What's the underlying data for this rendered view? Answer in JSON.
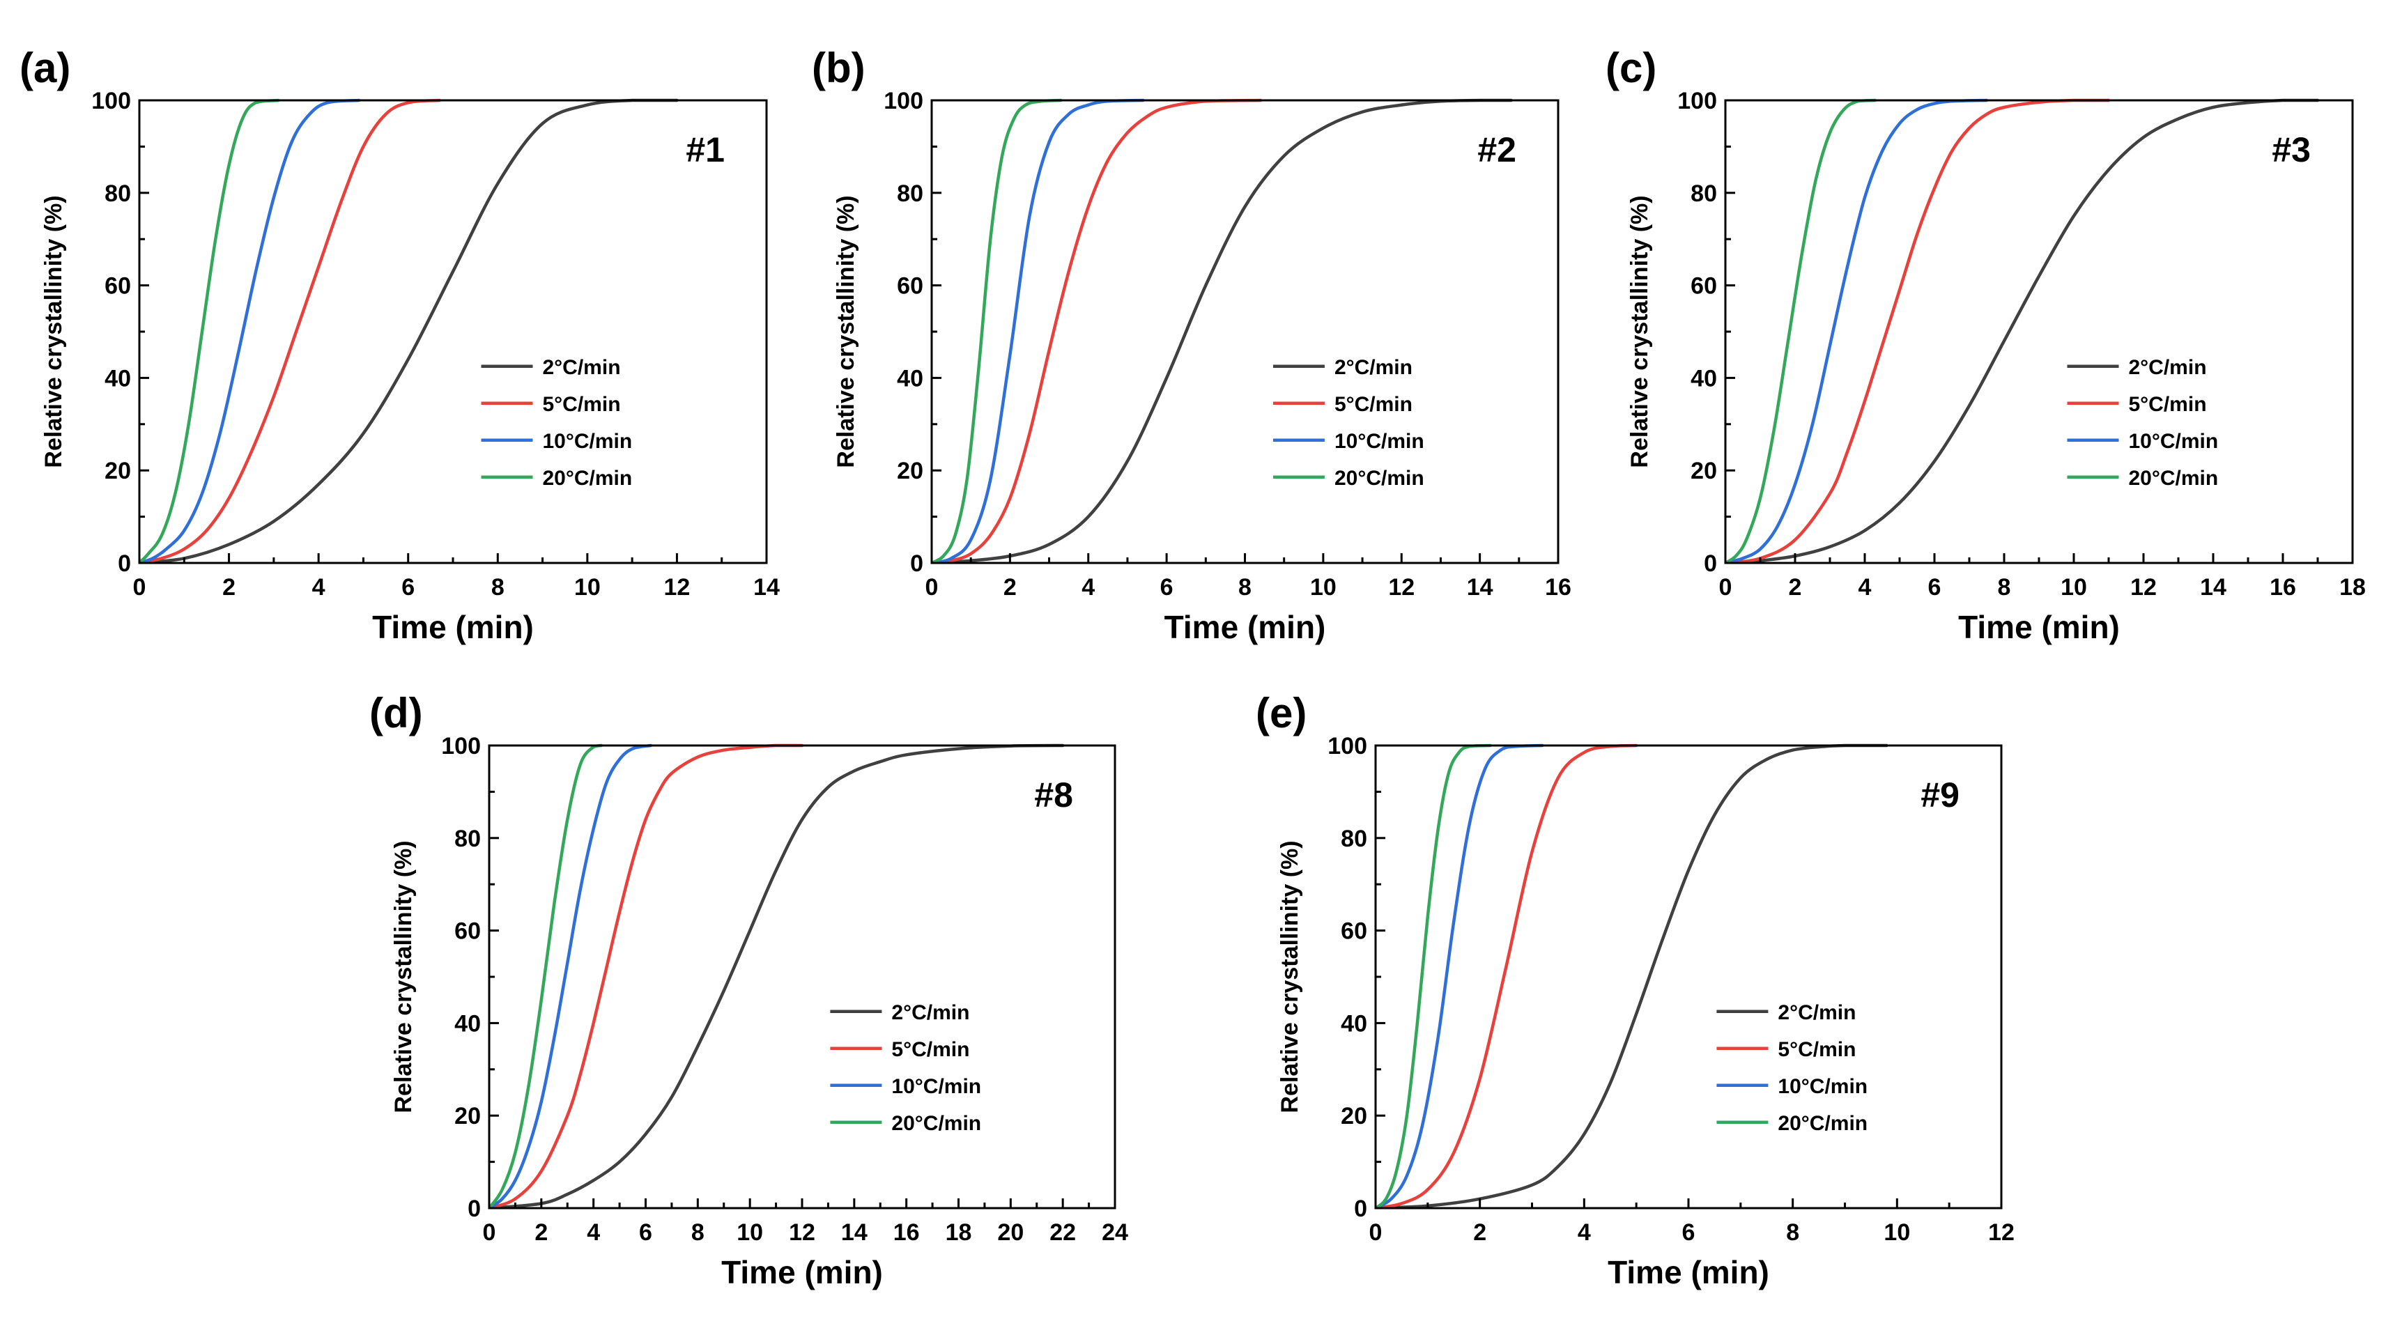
{
  "colors": {
    "2°C/min": "#404040",
    "5°C/min": "#e8413c",
    "10°C/min": "#2f6fd8",
    "20°C/min": "#33a85a"
  },
  "chart_data": [
    {
      "type": "line",
      "panel_label": "(a)",
      "sample_tag": "#1",
      "xlabel": "Time (min)",
      "ylabel": "Relative crystallinity (%)",
      "xlim": [
        0,
        14
      ],
      "ylim": [
        0,
        100
      ],
      "xticks": [
        0,
        2,
        4,
        6,
        8,
        10,
        12,
        14
      ],
      "yticks": [
        0,
        20,
        40,
        60,
        80,
        100
      ],
      "grid": false,
      "legend_position": "center-right",
      "series": [
        {
          "name": "2°C/min",
          "x": [
            0,
            1,
            2,
            3,
            4,
            5,
            6,
            7,
            8,
            9,
            10,
            11,
            12
          ],
          "y": [
            0,
            1,
            4,
            9,
            17,
            28,
            44,
            63,
            82,
            95,
            99,
            100,
            100
          ]
        },
        {
          "name": "5°C/min",
          "x": [
            0,
            0.5,
            1,
            1.5,
            2,
            2.5,
            3,
            3.5,
            4,
            4.5,
            5,
            5.5,
            6,
            6.7
          ],
          "y": [
            0,
            1,
            3,
            7,
            14,
            24,
            36,
            50,
            64,
            78,
            90,
            97,
            99.5,
            100
          ]
        },
        {
          "name": "10°C/min",
          "x": [
            0,
            0.3,
            0.6,
            1,
            1.4,
            1.8,
            2.2,
            2.6,
            3,
            3.4,
            3.8,
            4.2,
            4.9
          ],
          "y": [
            0,
            1,
            3,
            7,
            15,
            28,
            45,
            63,
            79,
            91,
            97,
            99.5,
            100
          ]
        },
        {
          "name": "20°C/min",
          "x": [
            0,
            0.2,
            0.5,
            0.8,
            1.1,
            1.4,
            1.7,
            2,
            2.3,
            2.6,
            3.1
          ],
          "y": [
            0,
            2,
            6,
            15,
            30,
            50,
            70,
            86,
            96,
            99.5,
            100
          ]
        }
      ]
    },
    {
      "type": "line",
      "panel_label": "(b)",
      "sample_tag": "#2",
      "xlabel": "Time (min)",
      "ylabel": "Relative crystallinity (%)",
      "xlim": [
        0,
        16
      ],
      "ylim": [
        0,
        100
      ],
      "xticks": [
        0,
        2,
        4,
        6,
        8,
        10,
        12,
        14,
        16
      ],
      "yticks": [
        0,
        20,
        40,
        60,
        80,
        100
      ],
      "grid": false,
      "legend_position": "center-right",
      "series": [
        {
          "name": "2°C/min",
          "x": [
            0,
            1,
            2,
            3,
            4,
            5,
            6,
            7,
            8,
            9,
            10,
            11,
            12,
            13,
            14,
            14.8
          ],
          "y": [
            0,
            0.5,
            1.5,
            4,
            10,
            22,
            40,
            60,
            77,
            88,
            94,
            97.5,
            99,
            99.8,
            100,
            100
          ]
        },
        {
          "name": "5°C/min",
          "x": [
            0,
            0.5,
            1,
            1.5,
            2,
            2.5,
            3,
            3.5,
            4,
            4.5,
            5,
            5.5,
            6,
            7,
            8.4
          ],
          "y": [
            0,
            0.5,
            2,
            6,
            14,
            28,
            46,
            63,
            77,
            87,
            93,
            96.5,
            98.5,
            99.8,
            100
          ]
        },
        {
          "name": "10°C/min",
          "x": [
            0,
            0.5,
            1,
            1.5,
            2,
            2.5,
            3,
            3.5,
            4,
            4.5,
            5.4
          ],
          "y": [
            0,
            1,
            5,
            18,
            45,
            75,
            91,
            97,
            99,
            99.8,
            100
          ]
        },
        {
          "name": "20°C/min",
          "x": [
            0,
            0.3,
            0.6,
            0.9,
            1.2,
            1.5,
            1.8,
            2.1,
            2.4,
            2.8,
            3.3
          ],
          "y": [
            0,
            1.5,
            6,
            18,
            42,
            70,
            88,
            96,
            99,
            99.8,
            100
          ]
        }
      ]
    },
    {
      "type": "line",
      "panel_label": "(c)",
      "sample_tag": "#3",
      "xlabel": "Time (min)",
      "ylabel": "Relative crystallinity (%)",
      "xlim": [
        0,
        18
      ],
      "ylim": [
        0,
        100
      ],
      "xticks": [
        0,
        2,
        4,
        6,
        8,
        10,
        12,
        14,
        16,
        18
      ],
      "yticks": [
        0,
        20,
        40,
        60,
        80,
        100
      ],
      "grid": false,
      "legend_position": "center-right",
      "series": [
        {
          "name": "2°C/min",
          "x": [
            0,
            1,
            2,
            3,
            4,
            5,
            6,
            7,
            8,
            9,
            10,
            11,
            12,
            13,
            14,
            15,
            16,
            17
          ],
          "y": [
            0,
            0.5,
            1.5,
            3.5,
            7,
            13,
            22,
            34,
            48,
            62,
            75,
            85,
            92,
            96,
            98.5,
            99.5,
            100,
            100
          ]
        },
        {
          "name": "5°C/min",
          "x": [
            0,
            1,
            2,
            3,
            3.5,
            4,
            4.5,
            5,
            5.5,
            6,
            6.5,
            7,
            7.5,
            8,
            9,
            10,
            11
          ],
          "y": [
            0,
            1,
            5,
            15,
            24,
            35,
            47,
            59,
            71,
            81,
            89,
            94,
            97,
            98.5,
            99.6,
            100,
            100
          ]
        },
        {
          "name": "10°C/min",
          "x": [
            0,
            0.5,
            1,
            1.5,
            2,
            2.5,
            3,
            3.5,
            4,
            4.5,
            5,
            5.5,
            6,
            6.5,
            7.5
          ],
          "y": [
            0,
            1,
            3,
            8,
            17,
            30,
            47,
            64,
            79,
            89,
            95,
            98,
            99.3,
            99.8,
            100
          ]
        },
        {
          "name": "20°C/min",
          "x": [
            0,
            0.3,
            0.6,
            1,
            1.4,
            1.8,
            2.2,
            2.6,
            3,
            3.4,
            3.8,
            4.3
          ],
          "y": [
            0,
            1.5,
            5,
            14,
            29,
            48,
            67,
            83,
            93,
            98,
            99.8,
            100
          ]
        }
      ]
    },
    {
      "type": "line",
      "panel_label": "(d)",
      "sample_tag": "#8",
      "xlabel": "Time (min)",
      "ylabel": "Relative crystallinity (%)",
      "xlim": [
        0,
        24
      ],
      "ylim": [
        0,
        100
      ],
      "xticks": [
        0,
        2,
        4,
        6,
        8,
        10,
        12,
        14,
        16,
        18,
        20,
        22,
        24
      ],
      "yticks": [
        0,
        20,
        40,
        60,
        80,
        100
      ],
      "grid": false,
      "legend_position": "center-right",
      "series": [
        {
          "name": "2°C/min",
          "x": [
            0,
            2,
            3,
            4,
            5,
            6,
            7,
            8,
            9,
            10,
            11,
            12,
            13,
            14,
            15,
            16,
            18,
            20,
            22
          ],
          "y": [
            0,
            1,
            3,
            6,
            10,
            16,
            24,
            35,
            47,
            60,
            73,
            84,
            91,
            94.5,
            96.5,
            98,
            99.3,
            99.9,
            100
          ]
        },
        {
          "name": "5°C/min",
          "x": [
            0,
            1,
            2,
            3,
            3.5,
            4,
            4.5,
            5,
            5.5,
            6,
            6.5,
            7,
            8,
            9,
            10,
            11,
            12
          ],
          "y": [
            0,
            2,
            8,
            20,
            29,
            40,
            52,
            64,
            75,
            84,
            90,
            94,
            97.5,
            99,
            99.6,
            100,
            100
          ]
        },
        {
          "name": "10°C/min",
          "x": [
            0,
            0.5,
            1,
            1.5,
            2,
            2.5,
            3,
            3.5,
            4,
            4.5,
            5,
            5.5,
            6.2
          ],
          "y": [
            0,
            2,
            6,
            13,
            23,
            37,
            53,
            69,
            82,
            92,
            97,
            99.3,
            100
          ]
        },
        {
          "name": "20°C/min",
          "x": [
            0,
            0.5,
            1,
            1.5,
            2,
            2.5,
            3,
            3.5,
            4,
            4.3
          ],
          "y": [
            0,
            4,
            12,
            26,
            45,
            66,
            84,
            96,
            99.7,
            100
          ]
        }
      ]
    },
    {
      "type": "line",
      "panel_label": "(e)",
      "sample_tag": "#9",
      "xlabel": "Time (min)",
      "ylabel": "Relative crystallinity (%)",
      "xlim": [
        0,
        12
      ],
      "ylim": [
        0,
        100
      ],
      "xticks": [
        0,
        2,
        4,
        6,
        8,
        10,
        12
      ],
      "yticks": [
        0,
        20,
        40,
        60,
        80,
        100
      ],
      "grid": false,
      "legend_position": "center-right",
      "series": [
        {
          "name": "2°C/min",
          "x": [
            0,
            1,
            2,
            3,
            3.5,
            4,
            4.5,
            5,
            5.5,
            6,
            6.5,
            7,
            7.5,
            8,
            8.5,
            9,
            9.8
          ],
          "y": [
            0,
            0.5,
            2,
            5,
            9,
            16,
            27,
            42,
            58,
            73,
            85,
            93,
            97,
            99,
            99.7,
            100,
            100
          ]
        },
        {
          "name": "5°C/min",
          "x": [
            0,
            0.5,
            1,
            1.5,
            2,
            2.5,
            3,
            3.5,
            4,
            4.5,
            5
          ],
          "y": [
            0,
            1,
            4,
            12,
            28,
            52,
            77,
            93,
            98.5,
            99.8,
            100
          ]
        },
        {
          "name": "10°C/min",
          "x": [
            0,
            0.3,
            0.6,
            0.9,
            1.2,
            1.5,
            1.8,
            2.1,
            2.4,
            2.7,
            3.2
          ],
          "y": [
            0,
            2,
            7,
            18,
            37,
            62,
            83,
            95,
            99,
            99.8,
            100
          ]
        },
        {
          "name": "20°C/min",
          "x": [
            0,
            0.2,
            0.4,
            0.6,
            0.8,
            1,
            1.2,
            1.4,
            1.6,
            1.8,
            2.2
          ],
          "y": [
            0,
            2,
            8,
            20,
            40,
            63,
            82,
            94,
            98.5,
            99.8,
            100
          ]
        }
      ]
    }
  ]
}
